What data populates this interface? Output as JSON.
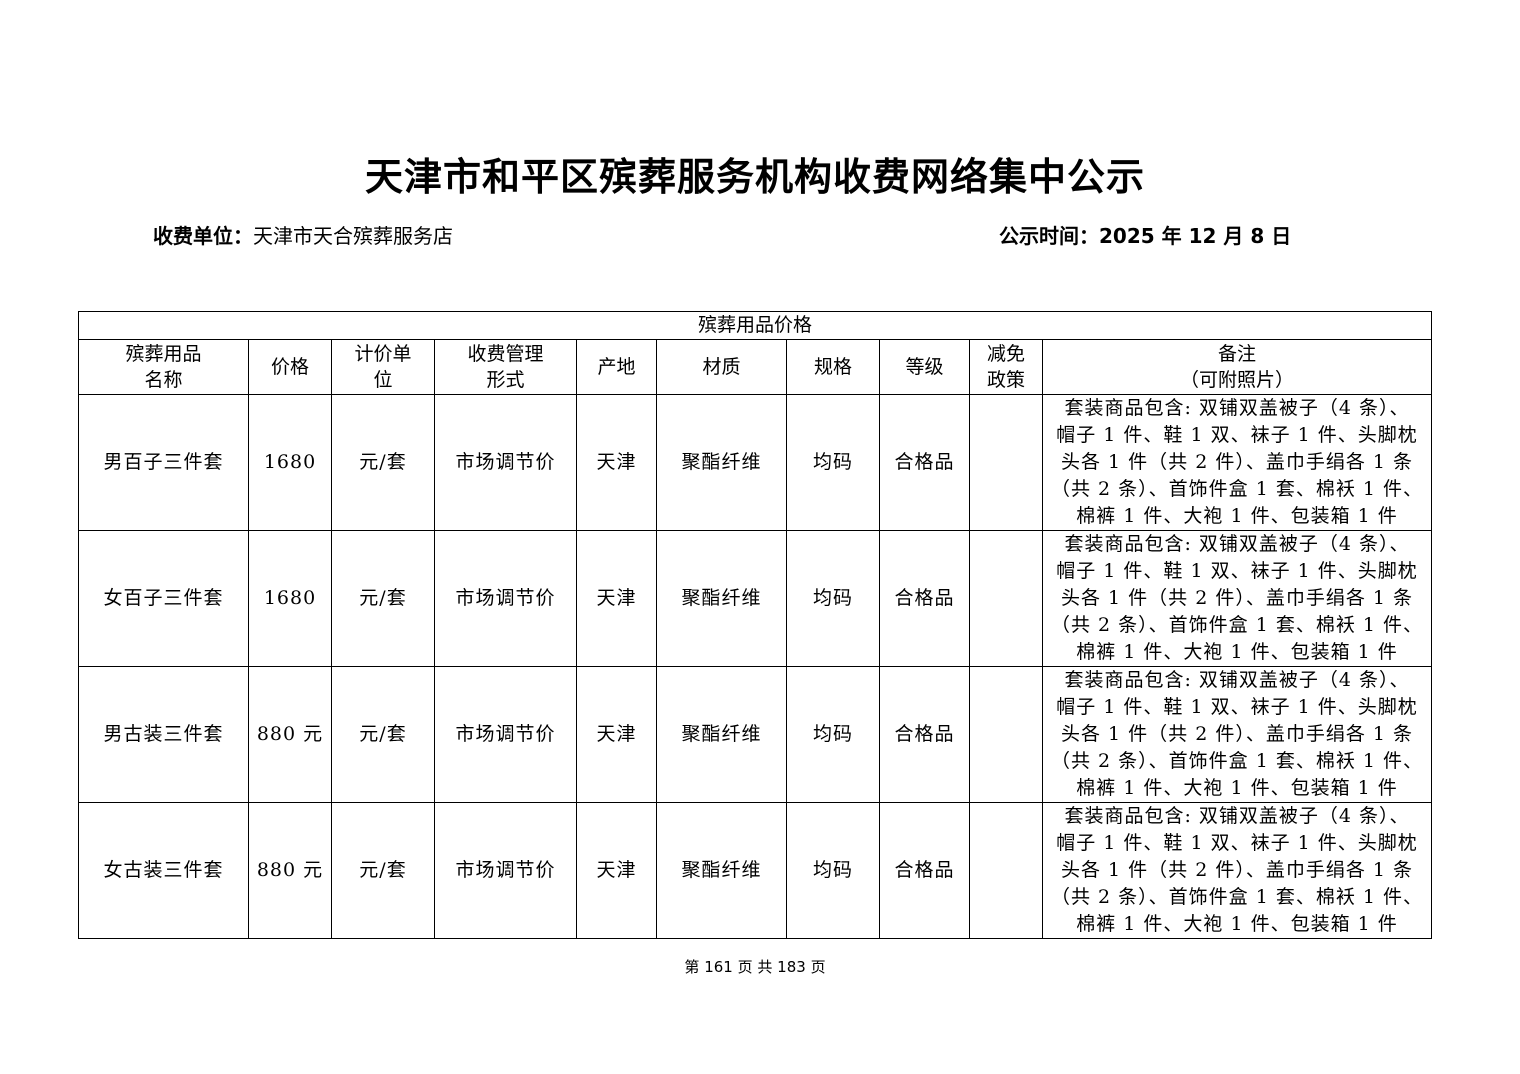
{
  "title": "天津市和平区殡葬服务机构收费网络集中公示",
  "unit_label": "收费单位：",
  "unit_value": "天津市天合殡葬服务店",
  "date_text": "公示时间：2025 年 12 月 8 日",
  "table": {
    "caption": "殡葬用品价格",
    "headers": [
      "殡葬用品\n名称",
      "价格",
      "计价单\n位",
      "收费管理\n形式",
      "产地",
      "材质",
      "规格",
      "等级",
      "减免\n政策",
      "备注\n（可附照片）"
    ],
    "rows": [
      {
        "name": "男百子三件套",
        "price": "1680",
        "unit": "元/套",
        "mgmt": "市场调节价",
        "origin": "天津",
        "material": "聚酯纤维",
        "spec": "均码",
        "grade": "合格品",
        "policy": "",
        "remark": "套装商品包含: 双铺双盖被子（4 条）、\n帽子 1 件、鞋 1 双、袜子 1 件、头脚枕\n头各 1 件（共 2 件）、盖巾手绢各 1 条\n（共 2 条）、首饰件盒 1 套、棉袄 1 件、\n棉裤 1 件、大袍 1 件、包装箱 1 件"
      },
      {
        "name": "女百子三件套",
        "price": "1680",
        "unit": "元/套",
        "mgmt": "市场调节价",
        "origin": "天津",
        "material": "聚酯纤维",
        "spec": "均码",
        "grade": "合格品",
        "policy": "",
        "remark": "套装商品包含: 双铺双盖被子（4 条）、\n帽子 1 件、鞋 1 双、袜子 1 件、头脚枕\n头各 1 件（共 2 件）、盖巾手绢各 1 条\n（共 2 条）、首饰件盒 1 套、棉袄 1 件、\n棉裤 1 件、大袍 1 件、包装箱 1 件"
      },
      {
        "name": "男古装三件套",
        "price": "880 元",
        "unit": "元/套",
        "mgmt": "市场调节价",
        "origin": "天津",
        "material": "聚酯纤维",
        "spec": "均码",
        "grade": "合格品",
        "policy": "",
        "remark": "套装商品包含: 双铺双盖被子（4 条）、\n帽子 1 件、鞋 1 双、袜子 1 件、头脚枕\n头各 1 件（共 2 件）、盖巾手绢各 1 条\n（共 2 条）、首饰件盒 1 套、棉袄 1 件、\n棉裤 1 件、大袍 1 件、包装箱 1 件"
      },
      {
        "name": "女古装三件套",
        "price": "880 元",
        "unit": "元/套",
        "mgmt": "市场调节价",
        "origin": "天津",
        "material": "聚酯纤维",
        "spec": "均码",
        "grade": "合格品",
        "policy": "",
        "remark": "套装商品包含: 双铺双盖被子（4 条）、\n帽子 1 件、鞋 1 双、袜子 1 件、头脚枕\n头各 1 件（共 2 件）、盖巾手绢各 1 条\n（共 2 条）、首饰件盒 1 套、棉袄 1 件、\n棉裤 1 件、大袍 1 件、包装箱 1 件"
      }
    ]
  },
  "footer": {
    "prefix": "第",
    "page": "161",
    "middle": "页 共",
    "total": "183",
    "suffix": "页"
  }
}
